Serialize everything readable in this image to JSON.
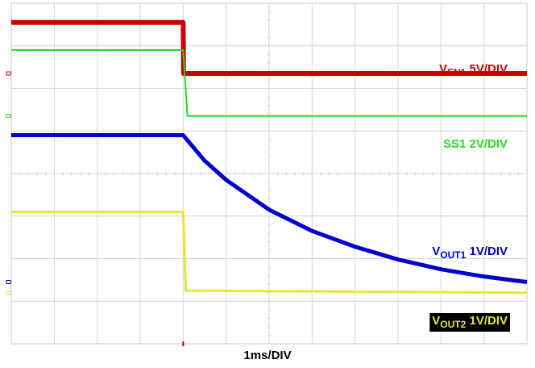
{
  "chart_data": {
    "type": "line",
    "xlabel": "1ms/DIV",
    "grid": true,
    "series": [
      {
        "name": "VEN1 5V/DIV",
        "label_main": "V",
        "label_sub": "EN1",
        "label_tail": " 5V/DIV",
        "color": "#cc0000",
        "x": [
          0,
          4,
          4.01,
          12
        ],
        "y": [
          7.55,
          7.55,
          6.35,
          6.35
        ]
      },
      {
        "name": "SS1 2V/DIV",
        "label_main": "SS1 2V/DIV",
        "label_sub": "",
        "label_tail": "",
        "color": "#22dd22",
        "x": [
          0,
          4,
          4.1,
          12
        ],
        "y": [
          6.9,
          6.9,
          5.35,
          5.35
        ]
      },
      {
        "name": "VOUT1 1V/DIV",
        "label_main": "V",
        "label_sub": "OUT1",
        "label_tail": " 1V/DIV",
        "color": "#0000cc",
        "x": [
          0,
          4,
          4.5,
          5,
          6,
          7,
          8,
          9,
          10,
          11,
          12
        ],
        "y": [
          4.9,
          4.9,
          4.3,
          3.85,
          3.15,
          2.65,
          2.28,
          1.98,
          1.75,
          1.58,
          1.45
        ]
      },
      {
        "name": "VOUT2 1V/DIV",
        "label_main": "V",
        "label_sub": "OUT2",
        "label_tail": " 1V/DIV",
        "color": "#e6e633",
        "x": [
          0,
          4,
          4.06,
          12
        ],
        "y": [
          3.1,
          3.1,
          1.25,
          1.2
        ]
      }
    ]
  }
}
